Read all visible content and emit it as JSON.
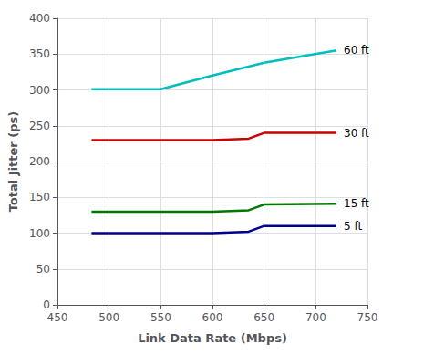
{
  "chart_data": {
    "type": "line",
    "xlabel": "Link Data Rate (Mbps)",
    "ylabel": "Total Jitter (ps)",
    "series": [
      {
        "name": "60 ft",
        "color": "#00BEBE",
        "x": [
          483,
          550,
          600,
          650,
          720
        ],
        "values": [
          301,
          301,
          320,
          338,
          355
        ]
      },
      {
        "name": "30 ft",
        "color": "#CC0000",
        "x": [
          483,
          550,
          600,
          635,
          650,
          720
        ],
        "values": [
          230,
          230,
          230,
          232,
          240,
          240
        ]
      },
      {
        "name": "15 ft",
        "color": "#007700",
        "x": [
          483,
          550,
          600,
          635,
          650,
          720
        ],
        "values": [
          130,
          130,
          130,
          132,
          140,
          141
        ]
      },
      {
        "name": "5 ft",
        "color": "#000090",
        "x": [
          483,
          550,
          600,
          635,
          650,
          720
        ],
        "values": [
          100,
          100,
          100,
          102,
          110,
          110
        ]
      }
    ],
    "xlim": [
      450,
      750
    ],
    "ylim": [
      0,
      400
    ],
    "xticks": [
      450,
      500,
      550,
      600,
      650,
      700,
      750
    ],
    "yticks": [
      0,
      50,
      100,
      150,
      200,
      250,
      300,
      350,
      400
    ],
    "grid": true
  }
}
